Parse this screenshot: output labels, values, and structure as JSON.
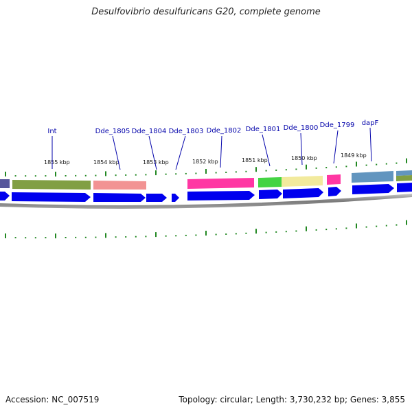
{
  "title": "Desulfovibrio desulfuricans G20, complete genome",
  "footer": {
    "accession": "Accession: NC_007519",
    "summary": "Topology: circular; Length: 3,730,232 bp; Genes: 3,855"
  },
  "colors": {
    "cds": "#0000ee",
    "ticks": "#228822",
    "backbone": "#808080",
    "label": "#0000aa"
  },
  "kbp_labels": [
    "1855 kbp",
    "1854 kbp",
    "1853 kbp",
    "1852 kbp",
    "1851 kbp",
    "1850 kbp",
    "1849 kbp"
  ],
  "gene_labels": [
    "Int",
    "Dde_1805",
    "Dde_1804",
    "Dde_1803",
    "Dde_1802",
    "Dde_1801",
    "Dde_1800",
    "Dde_1799",
    "dapF"
  ],
  "feature_colors": [
    "#3a3a8a",
    "#6b8e23",
    "#f08080",
    "#ff1493",
    "#22cc22",
    "#f0e68c",
    "#ff1493",
    "#4682b4",
    "#6b8e23",
    "#4682b4"
  ]
}
